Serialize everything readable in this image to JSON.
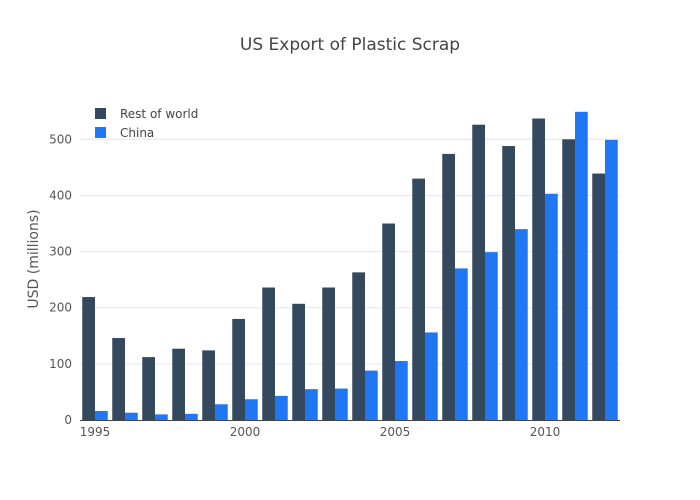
{
  "chart_data": {
    "type": "bar",
    "title": "US Export of Plastic Scrap",
    "xlabel": "",
    "ylabel": "USD (millions)",
    "categories": [
      1995,
      1996,
      1997,
      1998,
      1999,
      2000,
      2001,
      2002,
      2003,
      2004,
      2005,
      2006,
      2007,
      2008,
      2009,
      2010,
      2011,
      2012
    ],
    "series": [
      {
        "name": "Rest of world",
        "color": "#34495e",
        "values": [
          219,
          146,
          112,
          127,
          124,
          180,
          236,
          207,
          236,
          263,
          350,
          430,
          474,
          526,
          488,
          537,
          500,
          439
        ]
      },
      {
        "name": "China",
        "color": "#1f77f4",
        "values": [
          16,
          13,
          10,
          11,
          28,
          37,
          43,
          55,
          56,
          88,
          105,
          156,
          270,
          299,
          340,
          403,
          549,
          499
        ]
      }
    ],
    "ylim": [
      0,
      570
    ],
    "yticks": [
      0,
      100,
      200,
      300,
      400,
      500
    ],
    "xtick_labels": [
      "1995",
      "2000",
      "2005",
      "2010"
    ],
    "xtick_values": [
      1995,
      2000,
      2005,
      2010
    ],
    "grid": true,
    "legend_position": "top-left"
  }
}
